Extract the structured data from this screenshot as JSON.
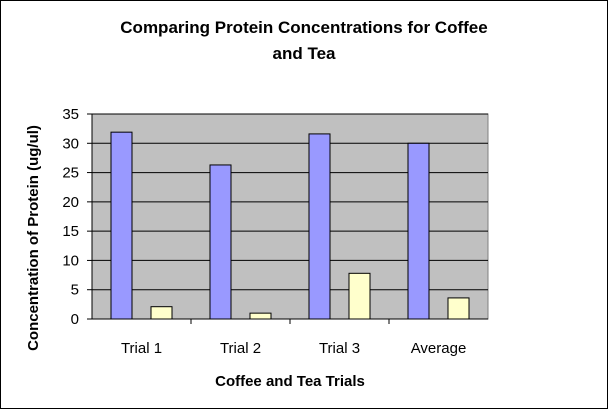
{
  "chart_data": {
    "type": "bar",
    "title_lines": [
      "Comparing Protein Concentrations for Coffee",
      "and Tea"
    ],
    "xlabel": "Coffee and Tea Trials",
    "ylabel": "Concentration of Protein (ug/ul)",
    "categories": [
      "Trial 1",
      "Trial 2",
      "Trial 3",
      "Average"
    ],
    "series": [
      {
        "values": [
          31.9,
          26.3,
          31.6,
          30.0
        ],
        "color": "#9999ff"
      },
      {
        "values": [
          2.1,
          1.0,
          7.8,
          3.6
        ],
        "color": "#ffffcc"
      }
    ],
    "ylim": [
      0,
      35
    ],
    "yticks": [
      0,
      5,
      10,
      15,
      20,
      25,
      30,
      35
    ],
    "grid": true,
    "legend": "none",
    "plot_background": "#c0c0c0"
  }
}
